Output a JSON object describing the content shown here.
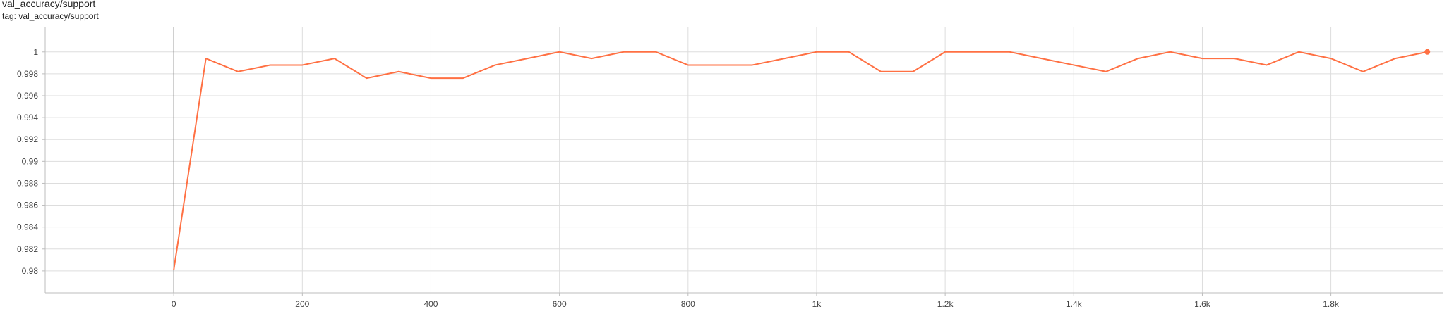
{
  "title": "val_accuracy/support",
  "tag": "tag: val_accuracy/support",
  "chart_data": {
    "type": "line",
    "xlim": [
      -200,
      1975
    ],
    "ylim": [
      0.978,
      1.0023
    ],
    "x_ticks": [
      0,
      200,
      400,
      600,
      800,
      1000,
      1200,
      1400,
      1600,
      1800
    ],
    "x_tick_labels": [
      "0",
      "200",
      "400",
      "600",
      "800",
      "1k",
      "1.2k",
      "1.4k",
      "1.6k",
      "1.8k"
    ],
    "y_ticks": [
      0.98,
      0.982,
      0.984,
      0.986,
      0.988,
      0.99,
      0.992,
      0.994,
      0.996,
      0.998,
      1
    ],
    "y_tick_labels": [
      "0.98",
      "0.982",
      "0.984",
      "0.986",
      "0.988",
      "0.99",
      "0.992",
      "0.994",
      "0.996",
      "0.998",
      "1"
    ],
    "grid": true,
    "series": [
      {
        "color": "#ff7043",
        "x": [
          0,
          50,
          100,
          150,
          200,
          250,
          300,
          350,
          400,
          450,
          500,
          550,
          600,
          650,
          700,
          750,
          800,
          850,
          900,
          950,
          1000,
          1050,
          1100,
          1150,
          1200,
          1250,
          1300,
          1350,
          1400,
          1450,
          1500,
          1550,
          1600,
          1650,
          1700,
          1750,
          1800,
          1850,
          1900,
          1950
        ],
        "y": [
          0.9801,
          0.9994,
          0.9982,
          0.9988,
          0.9988,
          0.9994,
          0.9976,
          0.9982,
          0.9976,
          0.9976,
          0.9988,
          0.9994,
          1.0,
          0.9994,
          1.0,
          1.0,
          0.9988,
          0.9988,
          0.9988,
          0.9994,
          1.0,
          1.0,
          0.9982,
          0.9982,
          1.0,
          1.0,
          1.0,
          0.9994,
          0.9988,
          0.9982,
          0.9994,
          1.0,
          0.9994,
          0.9994,
          0.9988,
          1.0,
          0.9994,
          0.9982,
          0.9994,
          1.0
        ]
      }
    ]
  }
}
